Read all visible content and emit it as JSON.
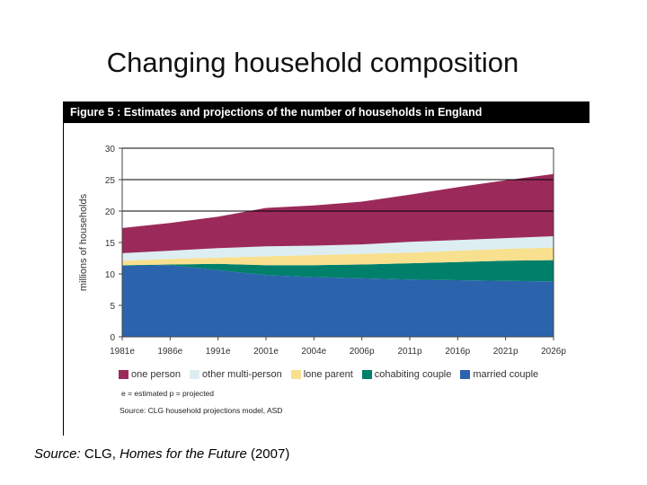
{
  "slide_title": "Changing household composition",
  "figure_header": "Figure 5 : Estimates and projections of the number of households in England",
  "note": "e = estimated    p = projected",
  "figure_source": "Source: CLG household projections model, ASD",
  "slide_source": {
    "label": "Source:",
    "org": "CLG,",
    "title": "Homes for the Future",
    "year": "(2007)"
  },
  "chart_data": {
    "type": "area",
    "stacked": true,
    "ylabel": "millions of households",
    "xlabel": "",
    "ylim": [
      0,
      30
    ],
    "yticks": [
      0,
      5,
      10,
      15,
      20,
      25,
      30
    ],
    "gridlines": [
      20,
      25,
      30
    ],
    "legend_placement": "bottom",
    "categories": [
      "1981e",
      "1986e",
      "1991e",
      "2001e",
      "2004e",
      "2006p",
      "2011p",
      "2016p",
      "2021p",
      "2026p"
    ],
    "series": [
      {
        "name": "married couple",
        "color": "#2b63ad",
        "values": [
          11.3,
          11.4,
          10.6,
          9.8,
          9.5,
          9.3,
          9.1,
          9.0,
          8.9,
          8.8
        ]
      },
      {
        "name": "cohabiting couple",
        "color": "#00806a",
        "values": [
          0.1,
          0.1,
          1.0,
          1.6,
          1.9,
          2.2,
          2.6,
          2.9,
          3.2,
          3.4
        ]
      },
      {
        "name": "lone parent",
        "color": "#f8e08e",
        "values": [
          0.7,
          0.9,
          1.0,
          1.4,
          1.6,
          1.7,
          1.7,
          1.8,
          1.9,
          2.0
        ]
      },
      {
        "name": "other multi-person",
        "color": "#dceef2",
        "values": [
          1.2,
          1.3,
          1.5,
          1.6,
          1.5,
          1.5,
          1.7,
          1.7,
          1.7,
          1.8
        ]
      },
      {
        "name": "one person",
        "color": "#9b2a5a",
        "values": [
          4.0,
          4.4,
          5.0,
          6.1,
          6.4,
          6.8,
          7.5,
          8.4,
          9.2,
          9.9
        ]
      }
    ],
    "legend_order": [
      "one person",
      "other multi-person",
      "lone parent",
      "cohabiting couple",
      "married couple"
    ]
  }
}
